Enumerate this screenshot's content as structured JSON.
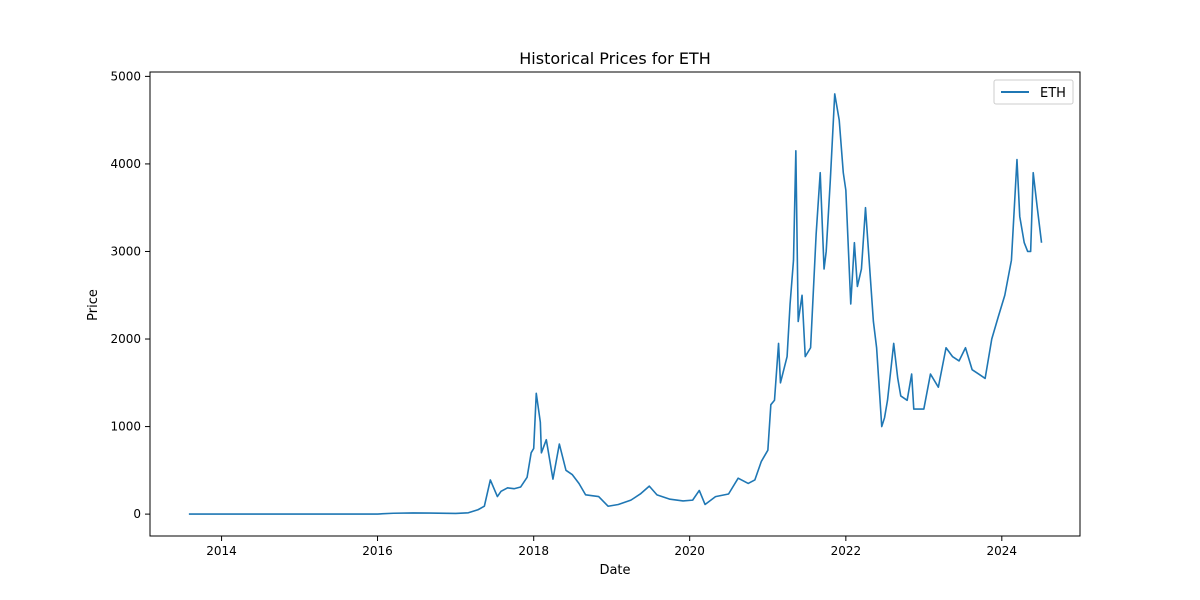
{
  "chart_data": {
    "type": "line",
    "title": "Historical Prices for ETH",
    "xlabel": "Date",
    "ylabel": "Price",
    "legend": {
      "placement": "top-right"
    },
    "grid": false,
    "xlim": [
      "2013-01-31",
      "2025-01-01"
    ],
    "ylim": [
      -250,
      5050
    ],
    "x_ticks": [
      {
        "value": "2014-01-01",
        "label": "2014"
      },
      {
        "value": "2016-01-01",
        "label": "2016"
      },
      {
        "value": "2018-01-01",
        "label": "2018"
      },
      {
        "value": "2020-01-01",
        "label": "2020"
      },
      {
        "value": "2022-01-01",
        "label": "2022"
      },
      {
        "value": "2024-01-01",
        "label": "2024"
      }
    ],
    "y_ticks": [
      {
        "value": 0,
        "label": "0"
      },
      {
        "value": 1000,
        "label": "1000"
      },
      {
        "value": 2000,
        "label": "2000"
      },
      {
        "value": 3000,
        "label": "3000"
      },
      {
        "value": 4000,
        "label": "4000"
      },
      {
        "value": 5000,
        "label": "5000"
      }
    ],
    "series": [
      {
        "name": "ETH",
        "color": "#1f77b4",
        "x": [
          "2013-08-01",
          "2014-01-01",
          "2015-01-01",
          "2015-08-01",
          "2016-01-01",
          "2016-03-15",
          "2016-06-15",
          "2016-09-01",
          "2017-01-01",
          "2017-03-01",
          "2017-04-15",
          "2017-05-15",
          "2017-06-12",
          "2017-07-15",
          "2017-08-01",
          "2017-09-01",
          "2017-10-01",
          "2017-11-01",
          "2017-12-01",
          "2017-12-20",
          "2018-01-01",
          "2018-01-13",
          "2018-02-01",
          "2018-02-06",
          "2018-03-01",
          "2018-04-01",
          "2018-05-01",
          "2018-06-01",
          "2018-07-01",
          "2018-08-01",
          "2018-09-01",
          "2018-10-01",
          "2018-11-01",
          "2018-12-15",
          "2019-02-01",
          "2019-04-01",
          "2019-05-15",
          "2019-06-26",
          "2019-08-01",
          "2019-10-01",
          "2019-12-01",
          "2020-01-15",
          "2020-02-15",
          "2020-03-13",
          "2020-05-01",
          "2020-07-01",
          "2020-08-15",
          "2020-10-01",
          "2020-11-01",
          "2020-12-01",
          "2021-01-01",
          "2021-01-15",
          "2021-02-01",
          "2021-02-20",
          "2021-03-01",
          "2021-04-01",
          "2021-04-15",
          "2021-05-01",
          "2021-05-12",
          "2021-05-23",
          "2021-06-10",
          "2021-06-25",
          "2021-07-20",
          "2021-08-15",
          "2021-09-03",
          "2021-09-21",
          "2021-10-01",
          "2021-10-20",
          "2021-11-10",
          "2021-12-01",
          "2021-12-20",
          "2022-01-01",
          "2022-01-24",
          "2022-02-10",
          "2022-02-24",
          "2022-03-15",
          "2022-04-03",
          "2022-04-20",
          "2022-05-10",
          "2022-05-25",
          "2022-06-18",
          "2022-07-01",
          "2022-07-15",
          "2022-08-13",
          "2022-09-01",
          "2022-09-15",
          "2022-10-15",
          "2022-11-05",
          "2022-11-15",
          "2022-12-15",
          "2023-01-01",
          "2023-02-01",
          "2023-03-10",
          "2023-04-15",
          "2023-05-15",
          "2023-06-15",
          "2023-07-15",
          "2023-08-15",
          "2023-09-15",
          "2023-10-15",
          "2023-11-15",
          "2023-12-15",
          "2024-01-15",
          "2024-02-15",
          "2024-03-12",
          "2024-03-25",
          "2024-04-15",
          "2024-05-01",
          "2024-05-15",
          "2024-05-27",
          "2024-06-15",
          "2024-07-05"
        ],
        "y": [
          1,
          1,
          1,
          1,
          1,
          10,
          14,
          12,
          8,
          15,
          50,
          90,
          390,
          200,
          260,
          300,
          290,
          310,
          420,
          700,
          750,
          1380,
          1050,
          700,
          850,
          400,
          800,
          500,
          450,
          350,
          220,
          210,
          200,
          90,
          110,
          160,
          230,
          320,
          220,
          170,
          150,
          160,
          270,
          110,
          200,
          230,
          410,
          350,
          390,
          600,
          730,
          1250,
          1300,
          1950,
          1500,
          1800,
          2400,
          2900,
          4150,
          2200,
          2500,
          1800,
          1900,
          3200,
          3900,
          2800,
          3000,
          3800,
          4800,
          4500,
          3900,
          3700,
          2400,
          3100,
          2600,
          2800,
          3500,
          2900,
          2200,
          1900,
          1000,
          1100,
          1300,
          1950,
          1550,
          1350,
          1300,
          1600,
          1200,
          1200,
          1200,
          1600,
          1450,
          1900,
          1800,
          1750,
          1900,
          1650,
          1600,
          1550,
          2000,
          2250,
          2500,
          2900,
          4050,
          3400,
          3100,
          3000,
          3000,
          3900,
          3500,
          3100
        ]
      }
    ]
  }
}
